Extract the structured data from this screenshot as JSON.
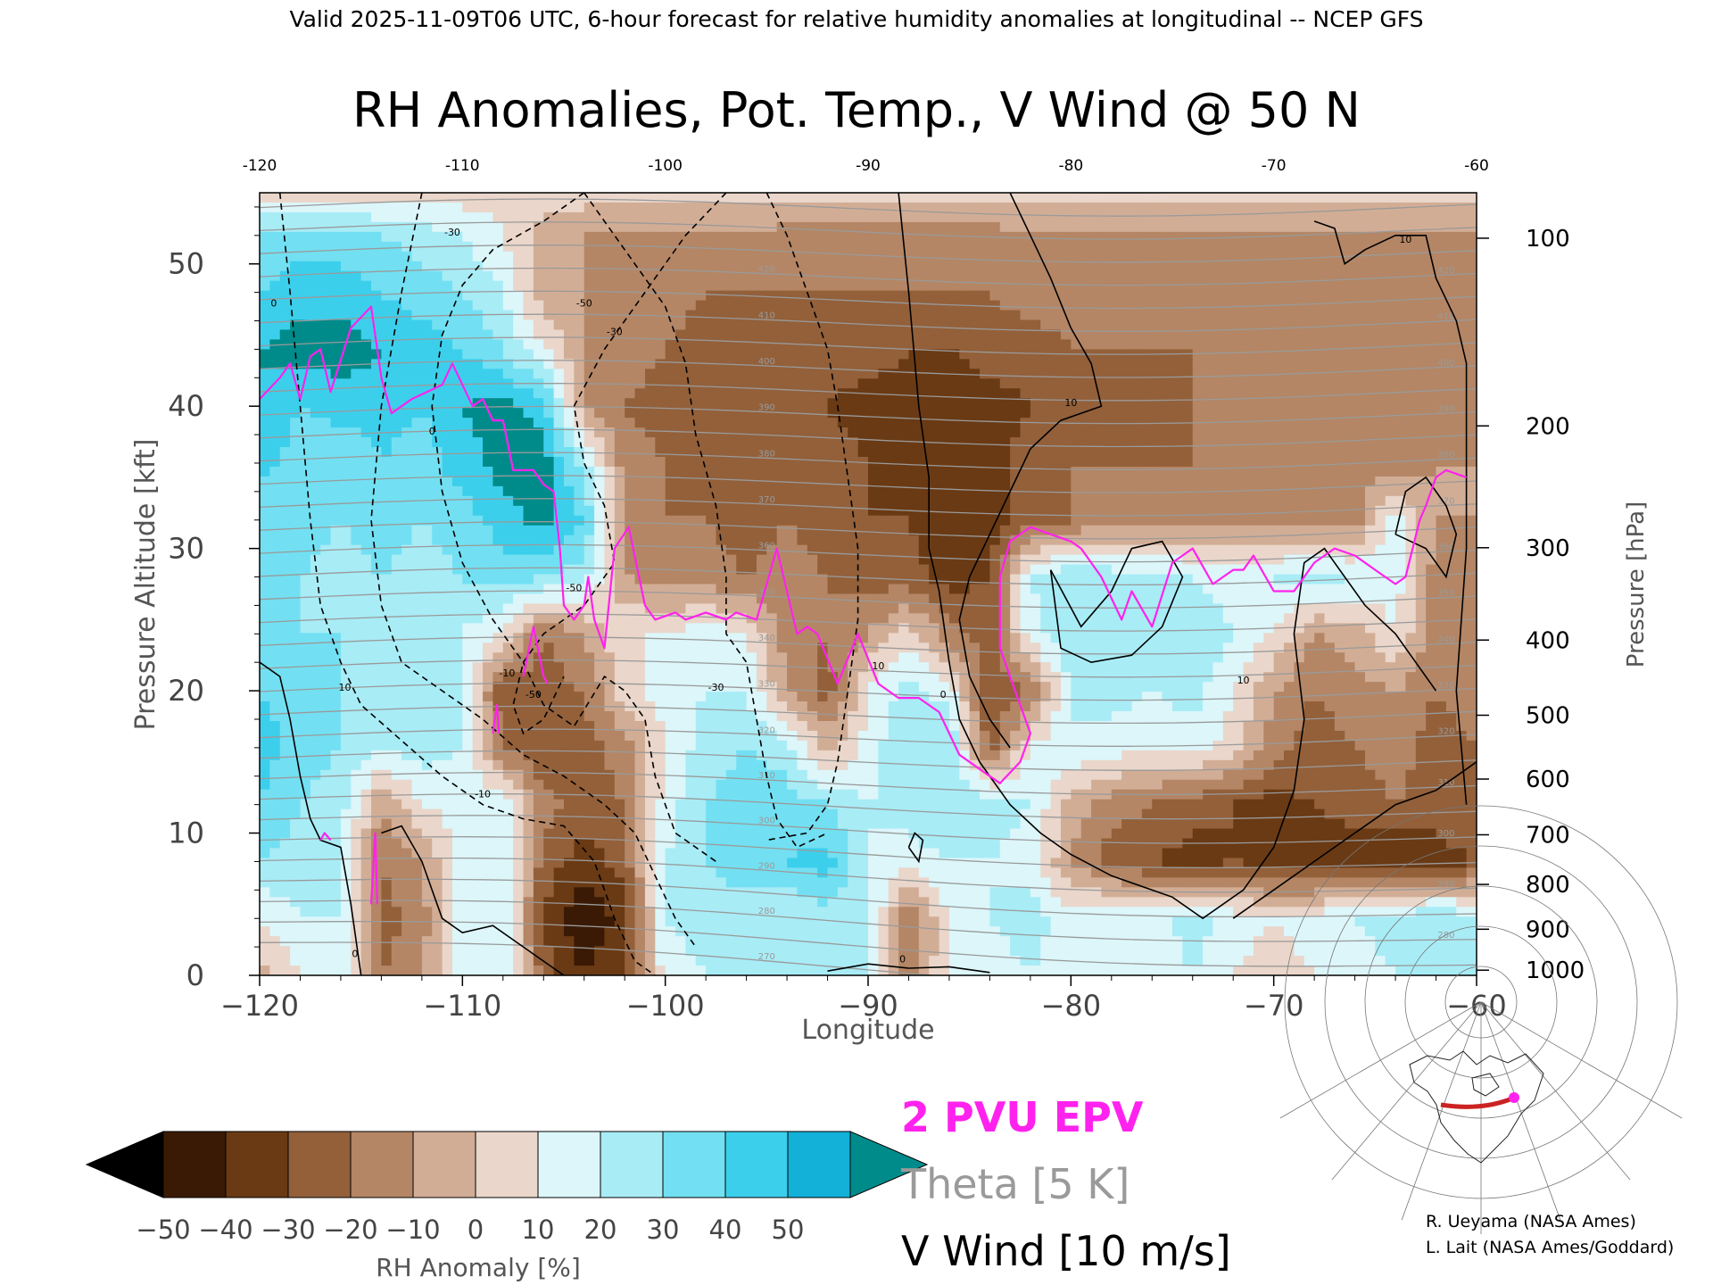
{
  "header": "Valid 2025-11-09T06 UTC, 6-hour forecast for relative humidity anomalies at longitudinal -- NCEP GFS",
  "colors": {
    "epv": "#ff22ee",
    "theta": "#9a9a9a",
    "vwind": "#000000",
    "route": "#cc2222"
  },
  "chart_data": {
    "type": "heatmap",
    "title": "RH Anomalies, Pot. Temp., V Wind @ 50 N",
    "xlabel": "Longitude",
    "ylabel": "Pressure Altitude [kft]",
    "y2label": "Pressure [hPa]",
    "xlim": [
      -120,
      -60
    ],
    "ylim": [
      0,
      55
    ],
    "x_ticks": [
      -120,
      -110,
      -100,
      -90,
      -80,
      -70,
      -60
    ],
    "x_tick_labels": [
      "−120",
      "−110",
      "−100",
      "−90",
      "−80",
      "−70",
      "−60"
    ],
    "top_tick_labels": [
      "-120",
      "-110",
      "-100",
      "-90",
      "-80",
      "-70",
      "-60"
    ],
    "y_ticks": [
      0,
      10,
      20,
      30,
      40,
      50
    ],
    "y_tick_labels": [
      "0",
      "10",
      "20",
      "30",
      "40",
      "50"
    ],
    "pressure_ticks": [
      {
        "hPa": 100,
        "label": "100"
      },
      {
        "hPa": 200,
        "label": "200"
      },
      {
        "hPa": 300,
        "label": "300"
      },
      {
        "hPa": 400,
        "label": "400"
      },
      {
        "hPa": 500,
        "label": "500"
      },
      {
        "hPa": 600,
        "label": "600"
      },
      {
        "hPa": 700,
        "label": "700"
      },
      {
        "hPa": 800,
        "label": "800"
      },
      {
        "hPa": 900,
        "label": "900"
      },
      {
        "hPa": 1000,
        "label": "1000"
      }
    ],
    "rh_anomaly_field": {
      "lon": [
        -120,
        -118,
        -116,
        -114,
        -112,
        -110,
        -108,
        -106,
        -104,
        -102,
        -100,
        -98,
        -96,
        -94,
        -92,
        -90,
        -88,
        -86,
        -84,
        -82,
        -80,
        -78,
        -76,
        -74,
        -72,
        -70,
        -68,
        -66,
        -64,
        -62,
        -60
      ],
      "alt_kft": [
        0,
        4,
        8,
        12,
        16,
        20,
        24,
        28,
        32,
        36,
        40,
        44,
        48,
        52,
        55
      ],
      "rh_anomaly_percent": [
        [
          -5,
          10,
          15,
          -20,
          -10,
          15,
          20,
          -25,
          -40,
          -30,
          15,
          20,
          25,
          20,
          25,
          20,
          -15,
          10,
          15,
          20,
          10,
          15,
          10,
          20,
          10,
          5,
          10,
          15,
          20,
          25,
          20
        ],
        [
          10,
          20,
          20,
          -25,
          -15,
          15,
          20,
          -30,
          -50,
          -35,
          20,
          25,
          25,
          20,
          25,
          25,
          -20,
          10,
          20,
          25,
          15,
          20,
          15,
          25,
          15,
          10,
          15,
          20,
          25,
          30,
          25
        ],
        [
          30,
          25,
          20,
          -20,
          -10,
          15,
          20,
          -25,
          -35,
          -25,
          20,
          30,
          35,
          40,
          45,
          20,
          15,
          20,
          20,
          15,
          -10,
          -25,
          -30,
          -35,
          -30,
          -35,
          -40,
          -35,
          -40,
          -35,
          -30
        ],
        [
          40,
          30,
          25,
          -10,
          10,
          15,
          20,
          -15,
          -25,
          -20,
          15,
          30,
          35,
          35,
          30,
          20,
          25,
          30,
          25,
          20,
          -5,
          -15,
          -20,
          -25,
          -30,
          -35,
          -30,
          -25,
          -20,
          -25,
          -20
        ],
        [
          45,
          35,
          30,
          20,
          25,
          20,
          -20,
          -30,
          -25,
          -15,
          10,
          25,
          30,
          25,
          -5,
          15,
          30,
          30,
          -25,
          10,
          20,
          15,
          10,
          15,
          5,
          -15,
          -25,
          -20,
          -15,
          -25,
          -20
        ],
        [
          40,
          35,
          30,
          25,
          30,
          20,
          -30,
          -25,
          -20,
          5,
          15,
          20,
          20,
          -10,
          -25,
          10,
          25,
          15,
          -30,
          -20,
          20,
          25,
          20,
          25,
          10,
          -10,
          -20,
          -15,
          -10,
          -20,
          -15
        ],
        [
          35,
          30,
          30,
          25,
          25,
          20,
          10,
          -20,
          -10,
          10,
          10,
          15,
          10,
          -15,
          -20,
          -10,
          5,
          -15,
          -25,
          15,
          30,
          25,
          25,
          30,
          20,
          10,
          -10,
          -5,
          10,
          -15,
          -10
        ],
        [
          35,
          30,
          25,
          30,
          25,
          30,
          35,
          30,
          25,
          -10,
          -15,
          -15,
          -20,
          -15,
          -20,
          -25,
          -25,
          -35,
          -30,
          20,
          30,
          25,
          25,
          20,
          15,
          20,
          25,
          20,
          15,
          -15,
          -15
        ],
        [
          30,
          35,
          30,
          35,
          30,
          35,
          45,
          55,
          40,
          -15,
          -20,
          -20,
          -25,
          -20,
          -25,
          -30,
          -30,
          -40,
          -35,
          -25,
          -20,
          -15,
          -15,
          -15,
          -15,
          -15,
          -15,
          -15,
          15,
          -10,
          -10
        ],
        [
          45,
          35,
          30,
          40,
          35,
          45,
          55,
          55,
          25,
          -15,
          -20,
          -25,
          -25,
          -25,
          -25,
          -30,
          -35,
          -40,
          -35,
          -25,
          -20,
          -20,
          -20,
          -20,
          -15,
          -15,
          -15,
          -15,
          -15,
          -10,
          -10
        ],
        [
          50,
          40,
          45,
          45,
          40,
          50,
          55,
          45,
          -10,
          -20,
          -25,
          -25,
          -30,
          -30,
          -30,
          -35,
          -35,
          -40,
          -35,
          -30,
          -25,
          -25,
          -25,
          -20,
          -20,
          -20,
          -20,
          -20,
          -20,
          -15,
          -15
        ],
        [
          50,
          55,
          55,
          50,
          45,
          40,
          30,
          10,
          -10,
          -15,
          -20,
          -25,
          -25,
          -25,
          -25,
          -25,
          -30,
          -30,
          -25,
          -25,
          -20,
          -20,
          -20,
          -20,
          -20,
          -20,
          -20,
          -20,
          -20,
          -15,
          -15
        ],
        [
          40,
          45,
          45,
          40,
          35,
          30,
          20,
          -5,
          -10,
          -15,
          -15,
          -20,
          -20,
          -20,
          -20,
          -20,
          -20,
          -20,
          -20,
          -15,
          -15,
          -15,
          -15,
          -15,
          -15,
          -15,
          -15,
          -15,
          -15,
          -15,
          -15
        ],
        [
          35,
          35,
          35,
          30,
          25,
          20,
          10,
          -5,
          -10,
          -10,
          -10,
          -10,
          -10,
          -15,
          -15,
          -15,
          -15,
          -15,
          -15,
          -10,
          -10,
          -10,
          -10,
          -10,
          -10,
          -10,
          -10,
          -10,
          -10,
          -10,
          -10
        ],
        [
          5,
          5,
          5,
          5,
          5,
          5,
          5,
          5,
          5,
          5,
          5,
          5,
          5,
          5,
          5,
          5,
          5,
          5,
          5,
          5,
          5,
          5,
          5,
          5,
          5,
          5,
          5,
          5,
          5,
          5,
          5
        ]
      ]
    },
    "epv_2pvu_line": {
      "name": "2 PVU EPV",
      "points": [
        [
          -120,
          40.5
        ],
        [
          -119,
          42
        ],
        [
          -118.5,
          43
        ],
        [
          -118,
          40.5
        ],
        [
          -117.5,
          43.5
        ],
        [
          -117,
          44
        ],
        [
          -116.5,
          41
        ],
        [
          -115.5,
          45.5
        ],
        [
          -114.5,
          47
        ],
        [
          -114,
          42
        ],
        [
          -113.5,
          39.5
        ],
        [
          -112.5,
          40.5
        ],
        [
          -111,
          41.5
        ],
        [
          -110.5,
          43
        ],
        [
          -109.5,
          40
        ],
        [
          -109,
          40.5
        ],
        [
          -108.5,
          39
        ],
        [
          -108,
          39
        ],
        [
          -107.5,
          35.5
        ],
        [
          -106.5,
          35.5
        ],
        [
          -106,
          34.5
        ],
        [
          -105.5,
          34
        ],
        [
          -105.2,
          30
        ],
        [
          -105,
          26
        ],
        [
          -104.5,
          25
        ],
        [
          -104,
          26
        ],
        [
          -103.8,
          28
        ],
        [
          -103.5,
          25
        ],
        [
          -103,
          23
        ],
        [
          -102.5,
          30
        ],
        [
          -101.8,
          31.5
        ],
        [
          -101,
          26
        ],
        [
          -100.5,
          25
        ],
        [
          -99.5,
          25.5
        ],
        [
          -99,
          25
        ],
        [
          -98,
          25.5
        ],
        [
          -97,
          25
        ],
        [
          -96.5,
          25.5
        ],
        [
          -95.5,
          25
        ],
        [
          -94.5,
          30
        ],
        [
          -93.5,
          24
        ],
        [
          -93,
          24.5
        ],
        [
          -92.5,
          24
        ],
        [
          -91.5,
          20.5
        ],
        [
          -90.5,
          24
        ],
        [
          -89.5,
          20.5
        ],
        [
          -88.5,
          19.5
        ],
        [
          -87.5,
          19.5
        ],
        [
          -86.5,
          18.5
        ],
        [
          -85.5,
          15.5
        ],
        [
          -84.5,
          14.5
        ],
        [
          -83.5,
          13.5
        ],
        [
          -82.5,
          15
        ],
        [
          -82,
          17
        ],
        [
          -82.5,
          19
        ],
        [
          -83,
          21
        ],
        [
          -83.5,
          23
        ],
        [
          -83.5,
          28
        ],
        [
          -83,
          30.5
        ],
        [
          -82,
          31.5
        ],
        [
          -81,
          31
        ],
        [
          -80,
          30.5
        ],
        [
          -79.5,
          30
        ],
        [
          -78.5,
          28
        ],
        [
          -77.5,
          25
        ],
        [
          -77,
          27
        ],
        [
          -76,
          24.5
        ],
        [
          -75,
          29
        ],
        [
          -74,
          30
        ],
        [
          -73,
          27.5
        ],
        [
          -72,
          28.5
        ],
        [
          -71.5,
          28.5
        ],
        [
          -71,
          29.5
        ],
        [
          -70,
          27
        ],
        [
          -69,
          27
        ],
        [
          -68,
          29
        ],
        [
          -67,
          30
        ],
        [
          -66,
          29.5
        ],
        [
          -65,
          28.5
        ],
        [
          -64,
          27.5
        ],
        [
          -63.5,
          28
        ],
        [
          -62.8,
          32
        ],
        [
          -62.5,
          33
        ],
        [
          -62,
          35
        ],
        [
          -61.5,
          35.5
        ],
        [
          -60.5,
          35
        ]
      ],
      "low_segments": [
        [
          [
            -117,
            9.5
          ],
          [
            -116.8,
            10
          ],
          [
            -116.5,
            9.5
          ]
        ],
        [
          [
            -114.5,
            5
          ],
          [
            -114.3,
            10
          ],
          [
            -114.2,
            5
          ]
        ],
        [
          [
            -108.5,
            17
          ],
          [
            -108.3,
            19
          ],
          [
            -108.2,
            17
          ]
        ],
        [
          [
            -107,
            21
          ],
          [
            -106.5,
            24.5
          ],
          [
            -106,
            21
          ],
          [
            -105.8,
            20.5
          ]
        ]
      ]
    },
    "theta": {
      "name": "Theta [5 K]",
      "interval_K": 5,
      "levels_K": [
        270,
        275,
        280,
        285,
        290,
        295,
        300,
        305,
        310,
        315,
        320,
        325,
        330,
        335,
        340,
        345,
        350,
        355,
        360,
        365,
        370,
        375,
        380,
        385,
        390,
        395,
        400,
        405,
        410,
        415,
        420,
        425,
        430,
        435,
        440
      ],
      "labels": [
        "270",
        "280",
        "290",
        "300",
        "310",
        "320",
        "330",
        "340",
        "350",
        "360",
        "370",
        "380",
        "390",
        "400",
        "410",
        "420"
      ]
    },
    "v_wind": {
      "name": "V Wind [10 m/s]",
      "interval_ms": 10,
      "labels": [
        "0",
        "10",
        "-10",
        "-30",
        "-50",
        "0",
        "10",
        "-30",
        "-50",
        "10",
        "0",
        "10",
        "10",
        "-10",
        "-30",
        "-50",
        "0",
        "0"
      ]
    },
    "colorbar": {
      "label": "RH Anomaly [%]",
      "ticks": [
        -50,
        -40,
        -30,
        -20,
        -10,
        0,
        10,
        20,
        30,
        40,
        50
      ],
      "tick_labels": [
        "−50",
        "−40",
        "−30",
        "−20",
        "−10",
        "0",
        "10",
        "20",
        "30",
        "40",
        "50"
      ],
      "colors": [
        "#000000",
        "#3a1a05",
        "#6a3a14",
        "#93603a",
        "#b48665",
        "#d2ad95",
        "#ead6ca",
        "#dcf6fa",
        "#a8ecf6",
        "#72e0f2",
        "#3ccfec",
        "#13b0d8",
        "#008b8b"
      ]
    },
    "legend": [
      {
        "label": "2 PVU EPV",
        "color": "#ff22ee"
      },
      {
        "label": "Theta [5 K]",
        "color": "#9a9a9a"
      },
      {
        "label": "V Wind [10 m/s]",
        "color": "#000000"
      }
    ]
  },
  "inset_map": {
    "name": "50 N section track map"
  },
  "credits": [
    "R. Ueyama (NASA Ames)",
    "L. Lait (NASA Ames/Goddard)"
  ]
}
